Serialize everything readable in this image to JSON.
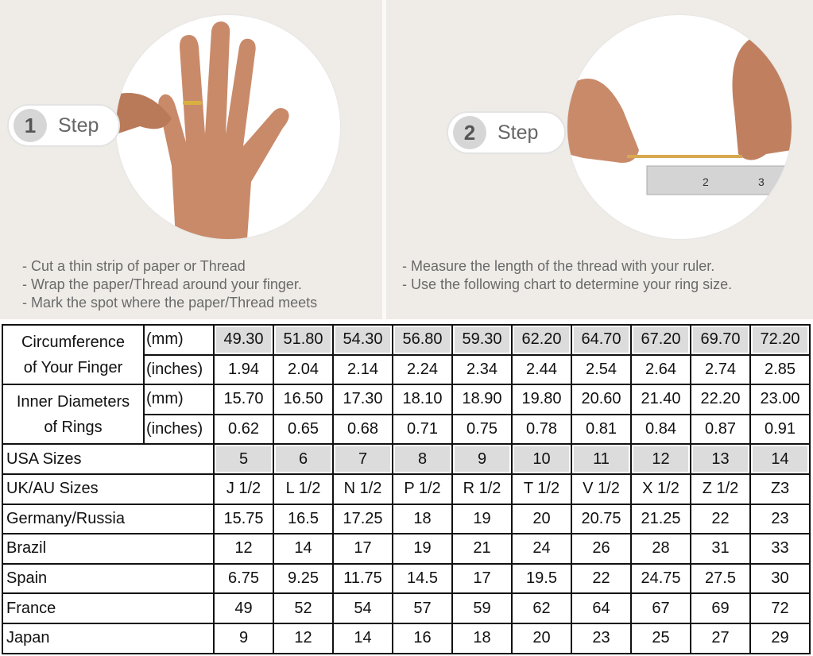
{
  "steps": [
    {
      "number": "1",
      "label": "Step",
      "instructions": [
        "- Cut a thin strip of paper or Thread",
        "- Wrap the paper/Thread around your finger.",
        "- Mark the spot where the paper/Thread meets"
      ]
    },
    {
      "number": "2",
      "label": "Step",
      "instructions": [
        "- Measure the length of the thread with your ruler.",
        "- Use the following chart to determine your ring size."
      ]
    }
  ],
  "table": {
    "circumference": {
      "label_line1": "Circumference",
      "label_line2": "of Your Finger",
      "mm_unit": "(mm)",
      "mm": [
        "49.30",
        "51.80",
        "54.30",
        "56.80",
        "59.30",
        "62.20",
        "64.70",
        "67.20",
        "69.70",
        "72.20"
      ],
      "in_unit": "(inches)",
      "in": [
        "1.94",
        "2.04",
        "2.14",
        "2.24",
        "2.34",
        "2.44",
        "2.54",
        "2.64",
        "2.74",
        "2.85"
      ]
    },
    "diameter": {
      "label_line1": "Inner Diameters",
      "label_line2": "of Rings",
      "mm_unit": "(mm)",
      "mm": [
        "15.70",
        "16.50",
        "17.30",
        "18.10",
        "18.90",
        "19.80",
        "20.60",
        "21.40",
        "22.20",
        "23.00"
      ],
      "in_unit": "(inches)",
      "in": [
        "0.62",
        "0.65",
        "0.68",
        "0.71",
        "0.75",
        "0.78",
        "0.81",
        "0.84",
        "0.87",
        "0.91"
      ]
    },
    "rows": [
      {
        "label": "USA Sizes",
        "values": [
          "5",
          "6",
          "7",
          "8",
          "9",
          "10",
          "11",
          "12",
          "13",
          "14"
        ]
      },
      {
        "label": "UK/AU Sizes",
        "values": [
          "J 1/2",
          "L 1/2",
          "N 1/2",
          "P 1/2",
          "R 1/2",
          "T 1/2",
          "V 1/2",
          "X 1/2",
          "Z 1/2",
          "Z3"
        ]
      },
      {
        "label": "Germany/Russia",
        "values": [
          "15.75",
          "16.5",
          "17.25",
          "18",
          "19",
          "20",
          "20.75",
          "21.25",
          "22",
          "23"
        ]
      },
      {
        "label": "Brazil",
        "values": [
          "12",
          "14",
          "17",
          "19",
          "21",
          "24",
          "26",
          "28",
          "31",
          "33"
        ]
      },
      {
        "label": "Spain",
        "values": [
          "6.75",
          "9.25",
          "11.75",
          "14.5",
          "17",
          "19.5",
          "22",
          "24.75",
          "27.5",
          "30"
        ]
      },
      {
        "label": "France",
        "values": [
          "49",
          "52",
          "54",
          "57",
          "59",
          "62",
          "64",
          "67",
          "69",
          "72"
        ]
      },
      {
        "label": "Japan",
        "values": [
          "9",
          "12",
          "14",
          "16",
          "18",
          "20",
          "23",
          "25",
          "27",
          "29"
        ]
      }
    ]
  },
  "colors": {
    "highlight": "#dcdcdc",
    "background": "#eeebe7",
    "skin": "#c98a6a"
  }
}
